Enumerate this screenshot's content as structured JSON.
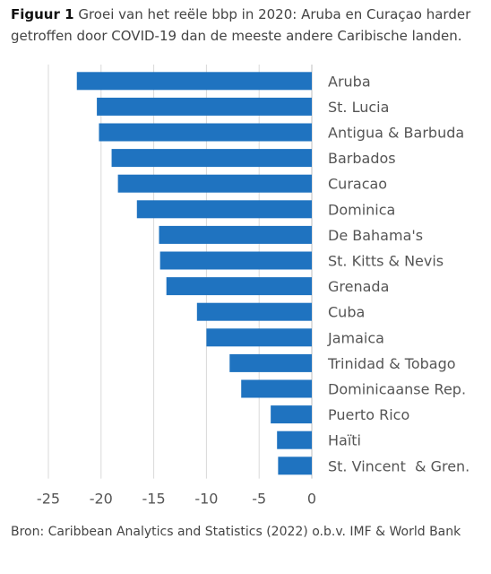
{
  "figure": {
    "label": "Figuur 1",
    "title": "Groei van het reële bbp in 2020: Aruba en Curaçao harder getroffen door COVID-19 dan de meeste andere Caribische landen."
  },
  "source": "Bron: Caribbean Analytics and Statistics (2022) o.b.v. IMF & World Bank",
  "colors": {
    "bar": "#1f73c0",
    "grid": "#d9d9d9",
    "axis": "#bfbfbf"
  },
  "chart_data": {
    "type": "bar",
    "orientation": "horizontal",
    "categories": [
      "Aruba",
      "St. Lucia",
      "Antigua & Barbuda",
      "Barbados",
      "Curacao",
      "Dominica",
      "De Bahama's",
      "St. Kitts & Nevis",
      "Grenada",
      "Cuba",
      "Jamaica",
      "Trinidad & Tobago",
      "Dominicaanse Rep.",
      "Puerto Rico",
      "Haïti",
      "St. Vincent  & Gren."
    ],
    "values": [
      -22.3,
      -20.4,
      -20.2,
      -19.0,
      -18.4,
      -16.6,
      -14.5,
      -14.4,
      -13.8,
      -10.9,
      -10.0,
      -7.8,
      -6.7,
      -3.9,
      -3.3,
      -3.2
    ],
    "xlim": [
      -25,
      0
    ],
    "xticks": [
      -25,
      -20,
      -15,
      -10,
      -5,
      0
    ],
    "xtick_labels": [
      "-25",
      "-20",
      "-15",
      "-10",
      "-5",
      "0"
    ],
    "grid": true,
    "legend": "none"
  }
}
